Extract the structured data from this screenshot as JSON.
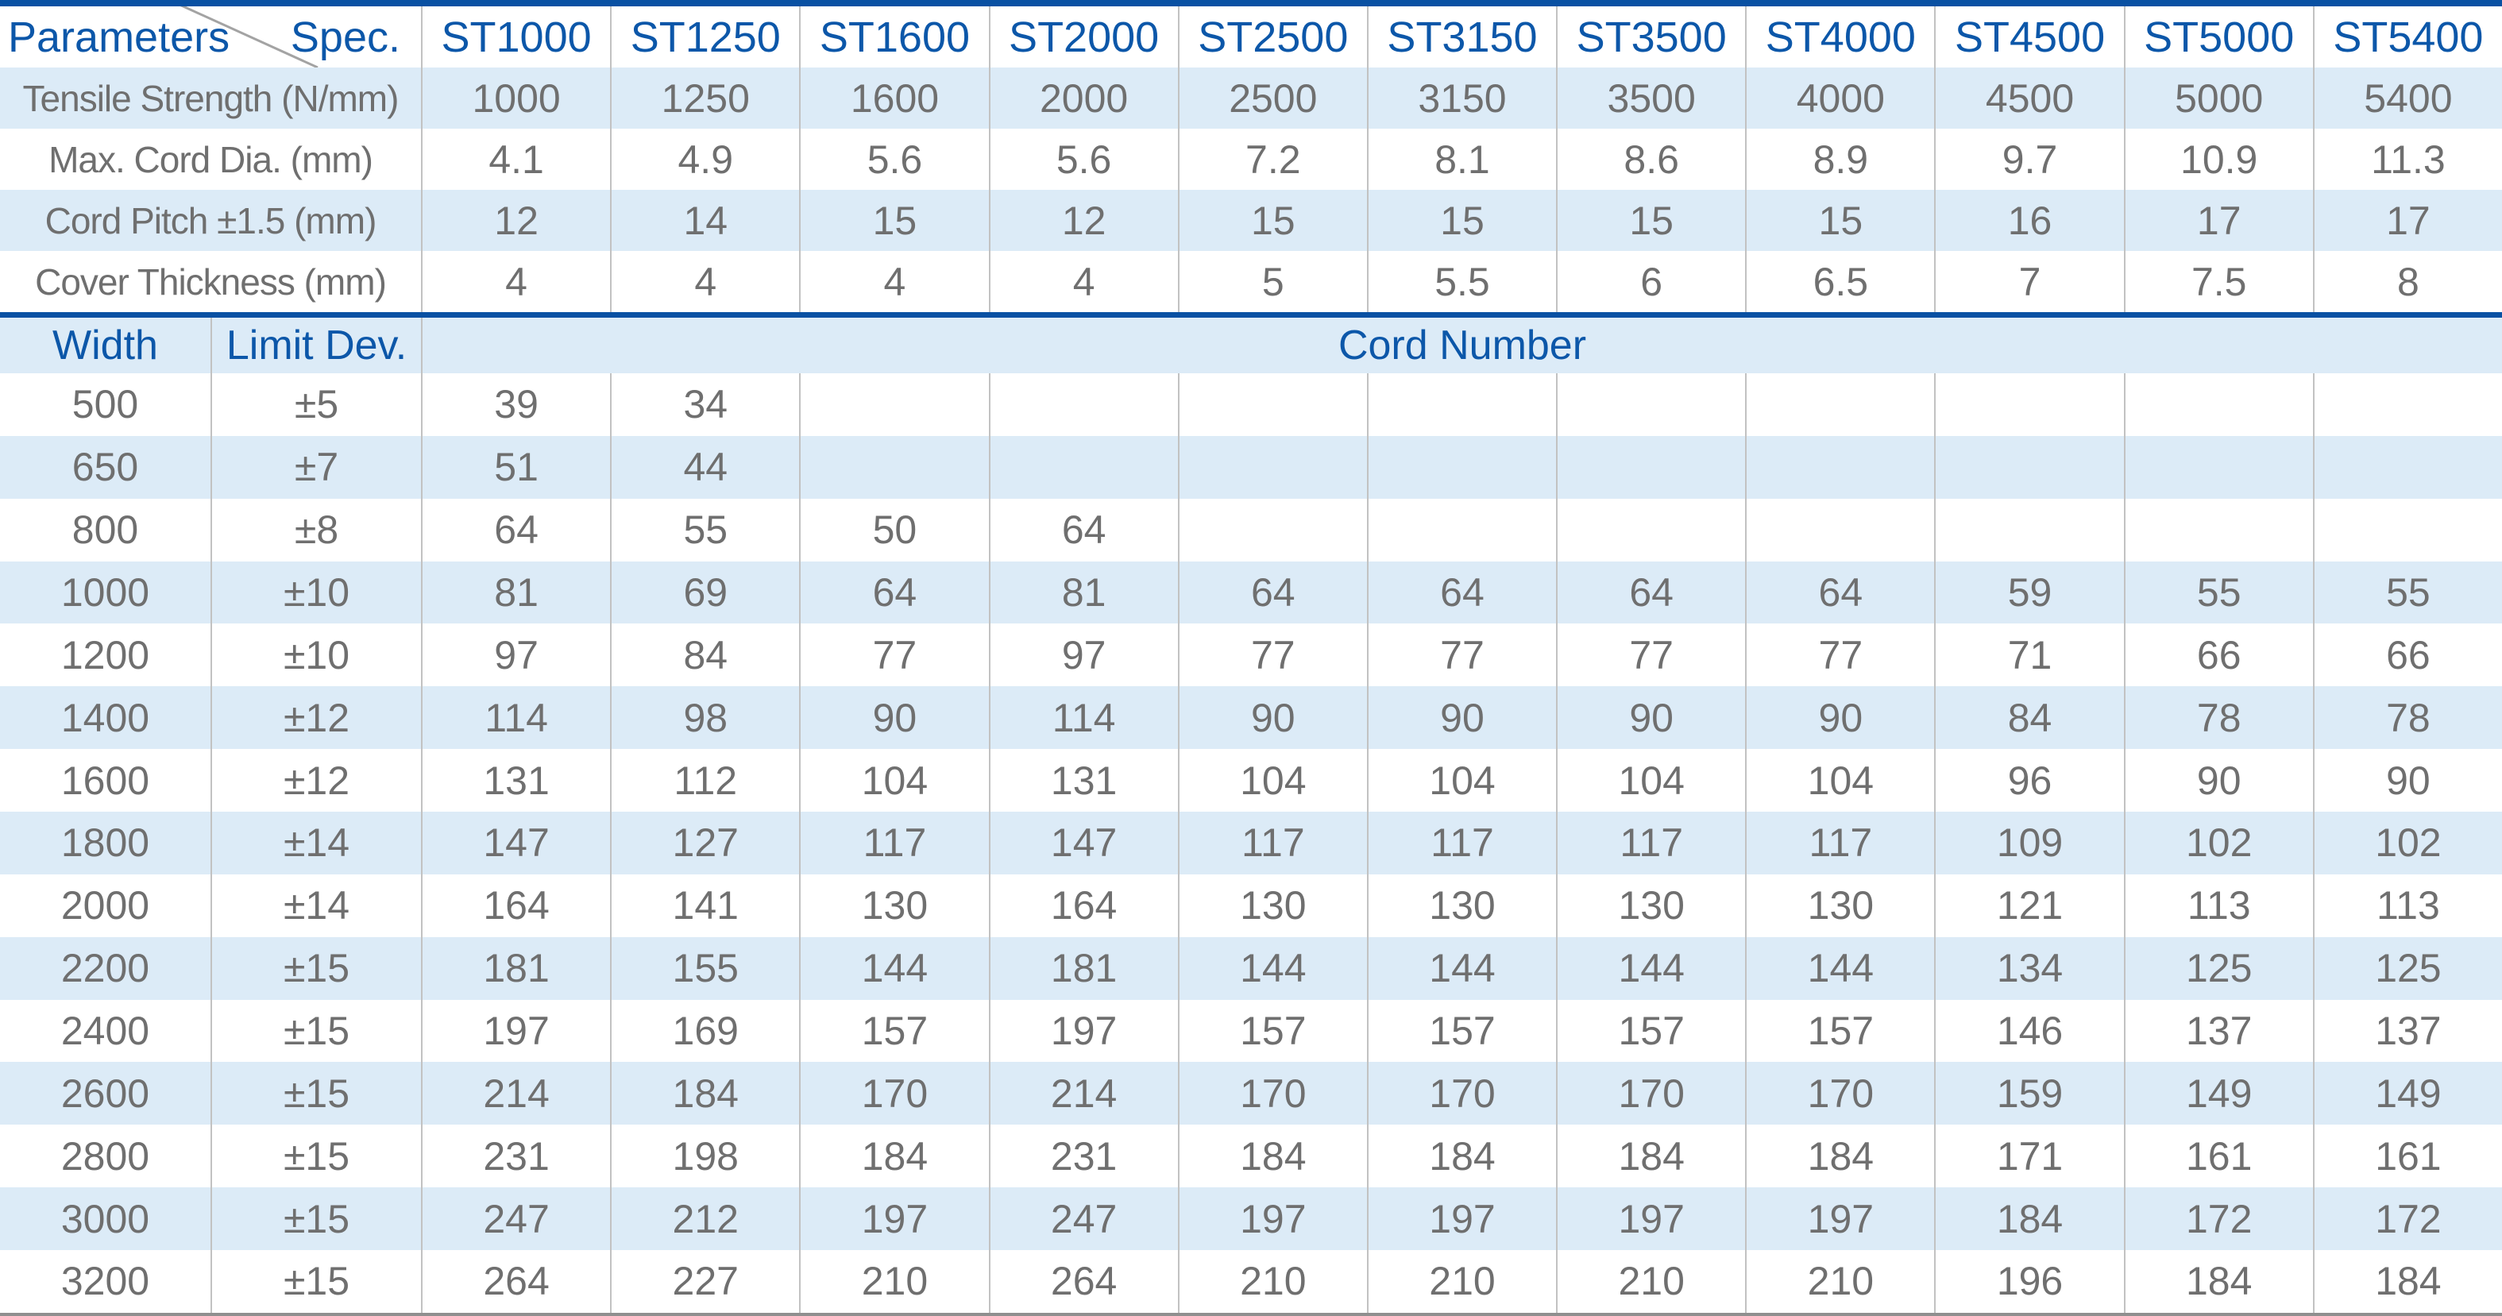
{
  "colors": {
    "accent_bar_blue": "#0951a3",
    "header_text_blue": "#0c57a9",
    "stripe_light_blue": "#dcebf7",
    "body_text_gray": "#6f6f6f",
    "column_border_gray": "#c2c2c2",
    "bottom_border_gray": "#8f8f8f",
    "diagonal_line_gray": "#a3a3a3"
  },
  "chart_data": {
    "type": "table",
    "title": "",
    "corner_labels": [
      "Parameters",
      "Spec."
    ],
    "spec_columns": [
      "ST1000",
      "ST1250",
      "ST1600",
      "ST2000",
      "ST2500",
      "ST3150",
      "ST3500",
      "ST4000",
      "ST4500",
      "ST5000",
      "ST5400"
    ],
    "parameter_rows": [
      {
        "label": "Tensile Strength (N/mm)",
        "values": [
          "1000",
          "1250",
          "1600",
          "2000",
          "2500",
          "3150",
          "3500",
          "4000",
          "4500",
          "5000",
          "5400"
        ]
      },
      {
        "label": "Max. Cord Dia. (mm)",
        "values": [
          "4.1",
          "4.9",
          "5.6",
          "5.6",
          "7.2",
          "8.1",
          "8.6",
          "8.9",
          "9.7",
          "10.9",
          "11.3"
        ]
      },
      {
        "label": "Cord Pitch ±1.5 (mm)",
        "values": [
          "12",
          "14",
          "15",
          "12",
          "15",
          "15",
          "15",
          "15",
          "16",
          "17",
          "17"
        ]
      },
      {
        "label": "Cover Thickness (mm)",
        "values": [
          "4",
          "4",
          "4",
          "4",
          "5",
          "5.5",
          "6",
          "6.5",
          "7",
          "7.5",
          "8"
        ]
      }
    ],
    "section2_headers": {
      "width": "Width",
      "limit_dev": "Limit Dev.",
      "cord_number": "Cord Number"
    },
    "width_rows": [
      {
        "width": "500",
        "limit_dev": "±5",
        "values": [
          "39",
          "34",
          "",
          "",
          "",
          "",
          "",
          "",
          "",
          "",
          ""
        ]
      },
      {
        "width": "650",
        "limit_dev": "±7",
        "values": [
          "51",
          "44",
          "",
          "",
          "",
          "",
          "",
          "",
          "",
          "",
          ""
        ]
      },
      {
        "width": "800",
        "limit_dev": "±8",
        "values": [
          "64",
          "55",
          "50",
          "64",
          "",
          "",
          "",
          "",
          "",
          "",
          ""
        ]
      },
      {
        "width": "1000",
        "limit_dev": "±10",
        "values": [
          "81",
          "69",
          "64",
          "81",
          "64",
          "64",
          "64",
          "64",
          "59",
          "55",
          "55"
        ]
      },
      {
        "width": "1200",
        "limit_dev": "±10",
        "values": [
          "97",
          "84",
          "77",
          "97",
          "77",
          "77",
          "77",
          "77",
          "71",
          "66",
          "66"
        ]
      },
      {
        "width": "1400",
        "limit_dev": "±12",
        "values": [
          "114",
          "98",
          "90",
          "114",
          "90",
          "90",
          "90",
          "90",
          "84",
          "78",
          "78"
        ]
      },
      {
        "width": "1600",
        "limit_dev": "±12",
        "values": [
          "131",
          "112",
          "104",
          "131",
          "104",
          "104",
          "104",
          "104",
          "96",
          "90",
          "90"
        ]
      },
      {
        "width": "1800",
        "limit_dev": "±14",
        "values": [
          "147",
          "127",
          "117",
          "147",
          "117",
          "117",
          "117",
          "117",
          "109",
          "102",
          "102"
        ]
      },
      {
        "width": "2000",
        "limit_dev": "±14",
        "values": [
          "164",
          "141",
          "130",
          "164",
          "130",
          "130",
          "130",
          "130",
          "121",
          "113",
          "113"
        ]
      },
      {
        "width": "2200",
        "limit_dev": "±15",
        "values": [
          "181",
          "155",
          "144",
          "181",
          "144",
          "144",
          "144",
          "144",
          "134",
          "125",
          "125"
        ]
      },
      {
        "width": "2400",
        "limit_dev": "±15",
        "values": [
          "197",
          "169",
          "157",
          "197",
          "157",
          "157",
          "157",
          "157",
          "146",
          "137",
          "137"
        ]
      },
      {
        "width": "2600",
        "limit_dev": "±15",
        "values": [
          "214",
          "184",
          "170",
          "214",
          "170",
          "170",
          "170",
          "170",
          "159",
          "149",
          "149"
        ]
      },
      {
        "width": "2800",
        "limit_dev": "±15",
        "values": [
          "231",
          "198",
          "184",
          "231",
          "184",
          "184",
          "184",
          "184",
          "171",
          "161",
          "161"
        ]
      },
      {
        "width": "3000",
        "limit_dev": "±15",
        "values": [
          "247",
          "212",
          "197",
          "247",
          "197",
          "197",
          "197",
          "197",
          "184",
          "172",
          "172"
        ]
      },
      {
        "width": "3200",
        "limit_dev": "±15",
        "values": [
          "264",
          "227",
          "210",
          "264",
          "210",
          "210",
          "210",
          "210",
          "196",
          "184",
          "184"
        ]
      }
    ]
  }
}
